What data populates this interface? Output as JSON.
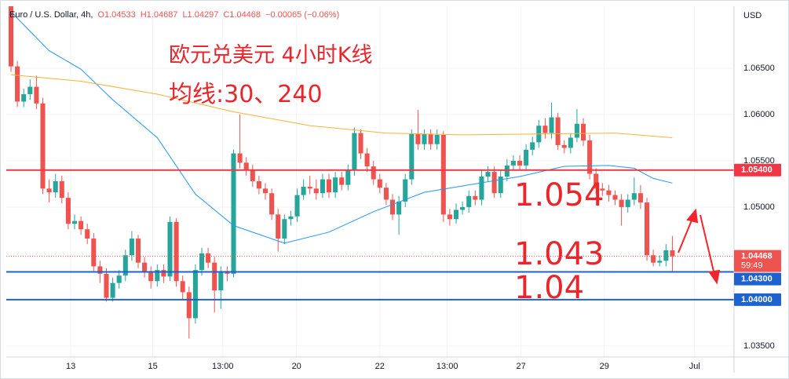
{
  "chart_data": {
    "type": "candlestick",
    "title": "Euro / U.S. Dollar, 4h,",
    "ohlc": [
      "O1.04533",
      "H1.04687",
      "L1.04297",
      "C1.04468",
      "−0.00065 (−0.06%)"
    ],
    "y_label": "USD",
    "annotations": [
      "欧元兑美元 4小时K线",
      "均线:30、240",
      "1.054",
      "1.043",
      "1.04"
    ],
    "up_color": "#26a69a",
    "down_color": "#ef5350",
    "open": [
      1.0717,
      1.0652,
      1.0614,
      1.0622,
      1.063,
      1.0612,
      1.052,
      1.0516,
      1.0528,
      1.051,
      1.0482,
      1.0485,
      1.0476,
      1.0466,
      1.0436,
      1.0428,
      1.0402,
      1.0418,
      1.0426,
      1.0448,
      1.0466,
      1.044,
      1.043,
      1.042,
      1.0432,
      1.0425,
      1.0484,
      1.042,
      1.0408,
      1.038,
      1.0432,
      1.045,
      1.044,
      1.041,
      1.043,
      1.0428,
      1.0558,
      1.0548,
      1.054,
      1.0528,
      1.052,
      1.0515,
      1.0492,
      1.0466,
      1.0487,
      1.049,
      1.0513,
      1.0522,
      1.052,
      1.0515,
      1.053,
      1.0516,
      1.0532,
      1.0524,
      1.054,
      1.058,
      1.0558,
      1.0544,
      1.053,
      1.0521,
      1.0508,
      1.0492,
      1.0506,
      1.053,
      1.0579,
      1.0568,
      1.0579,
      1.0568,
      1.0578,
      1.0492,
      1.0487,
      1.0497,
      1.05,
      1.0512,
      1.0508,
      1.0533,
      1.0538,
      1.0515,
      1.0533,
      1.0545,
      1.055,
      1.0545,
      1.0562,
      1.057,
      1.0588,
      1.058,
      1.0597,
      1.0567,
      1.0564,
      1.0575,
      1.059,
      1.0572,
      1.0536,
      1.052,
      1.0518,
      1.0513,
      1.0508,
      1.05,
      1.0508,
      1.0515,
      1.0505,
      1.0448,
      1.044,
      1.0442,
      1.04533
    ],
    "high": [
      1.072,
      1.0658,
      1.0628,
      1.0638,
      1.0642,
      1.0618,
      1.053,
      1.0536,
      1.0534,
      1.0516,
      1.0492,
      1.049,
      1.0482,
      1.0472,
      1.0442,
      1.0434,
      1.0424,
      1.0432,
      1.0454,
      1.0474,
      1.047,
      1.0446,
      1.0436,
      1.0438,
      1.0438,
      1.049,
      1.0488,
      1.0426,
      1.0414,
      1.0438,
      1.0456,
      1.0456,
      1.0446,
      1.0436,
      1.0436,
      1.0562,
      1.06,
      1.0554,
      1.0546,
      1.0534,
      1.0526,
      1.052,
      1.0498,
      1.0492,
      1.0496,
      1.052,
      1.053,
      1.0534,
      1.053,
      1.0536,
      1.0536,
      1.0538,
      1.0538,
      1.0546,
      1.0586,
      1.0584,
      1.0564,
      1.055,
      1.0536,
      1.0526,
      1.0514,
      1.0512,
      1.0536,
      1.0584,
      1.0605,
      1.0584,
      1.0584,
      1.0584,
      1.0582,
      1.0498,
      1.0504,
      1.0506,
      1.0518,
      1.0518,
      1.054,
      1.0544,
      1.0544,
      1.054,
      1.0552,
      1.0556,
      1.0556,
      1.0568,
      1.0576,
      1.0594,
      1.0596,
      1.0613,
      1.0602,
      1.0572,
      1.058,
      1.0606,
      1.0596,
      1.0578,
      1.0542,
      1.0526,
      1.0524,
      1.0518,
      1.0514,
      1.0514,
      1.0532,
      1.0524,
      1.051,
      1.0454,
      1.0448,
      1.046,
      1.04687
    ],
    "low": [
      1.0646,
      1.0608,
      1.0608,
      1.0616,
      1.0606,
      1.0514,
      1.0505,
      1.051,
      1.0504,
      1.0476,
      1.0476,
      1.047,
      1.046,
      1.043,
      1.0418,
      1.0398,
      1.0398,
      1.0412,
      1.042,
      1.0442,
      1.0434,
      1.0424,
      1.0412,
      1.0414,
      1.0418,
      1.042,
      1.0414,
      1.04,
      1.0358,
      1.0374,
      1.0426,
      1.0434,
      1.0386,
      1.039,
      1.042,
      1.0424,
      1.0542,
      1.0534,
      1.0522,
      1.0514,
      1.0508,
      1.0486,
      1.0452,
      1.046,
      1.048,
      1.0484,
      1.0508,
      1.0514,
      1.0508,
      1.051,
      1.051,
      1.051,
      1.0518,
      1.0518,
      1.0534,
      1.0552,
      1.0538,
      1.0524,
      1.0515,
      1.0502,
      1.0486,
      1.047,
      1.05,
      1.0524,
      1.0562,
      1.0562,
      1.0562,
      1.0562,
      1.0484,
      1.048,
      1.0482,
      1.0492,
      1.0494,
      1.0502,
      1.0502,
      1.0528,
      1.051,
      1.051,
      1.0528,
      1.054,
      1.054,
      1.054,
      1.0556,
      1.0564,
      1.0574,
      1.0574,
      1.0562,
      1.0558,
      1.0558,
      1.057,
      1.0566,
      1.053,
      1.0514,
      1.0512,
      1.0506,
      1.0502,
      1.048,
      1.0494,
      1.0502,
      1.0498,
      1.0442,
      1.0436,
      1.0436,
      1.0436,
      1.04297
    ],
    "close": [
      1.0652,
      1.0614,
      1.0622,
      1.063,
      1.0612,
      1.052,
      1.0516,
      1.0528,
      1.051,
      1.0482,
      1.0485,
      1.0476,
      1.0466,
      1.0436,
      1.0428,
      1.0402,
      1.0418,
      1.0426,
      1.0448,
      1.0466,
      1.044,
      1.043,
      1.042,
      1.0432,
      1.0425,
      1.0484,
      1.042,
      1.0408,
      1.038,
      1.0432,
      1.045,
      1.044,
      1.041,
      1.043,
      1.0428,
      1.0558,
      1.0548,
      1.054,
      1.0528,
      1.052,
      1.0515,
      1.0492,
      1.0466,
      1.0487,
      1.049,
      1.0513,
      1.0522,
      1.052,
      1.0515,
      1.053,
      1.0516,
      1.0532,
      1.0524,
      1.054,
      1.058,
      1.0558,
      1.0544,
      1.053,
      1.0521,
      1.0508,
      1.0492,
      1.0506,
      1.053,
      1.0579,
      1.0568,
      1.0579,
      1.0568,
      1.0578,
      1.0492,
      1.0487,
      1.0497,
      1.05,
      1.0512,
      1.0508,
      1.0533,
      1.0538,
      1.0515,
      1.0533,
      1.0545,
      1.055,
      1.0545,
      1.0562,
      1.057,
      1.0588,
      1.058,
      1.0597,
      1.0567,
      1.0564,
      1.0575,
      1.059,
      1.0572,
      1.0536,
      1.052,
      1.0518,
      1.0513,
      1.0508,
      1.05,
      1.0508,
      1.0515,
      1.0505,
      1.0448,
      1.044,
      1.0442,
      1.04533,
      1.04468
    ],
    "moving_averages": [
      {
        "color": "#2196f3",
        "x": [
          0,
          6,
          11,
          16,
          23,
          29,
          35,
          43,
          50,
          57,
          65,
          72,
          80,
          87,
          94,
          98,
          101,
          104
        ],
        "values": [
          1.0711,
          1.0669,
          1.0649,
          1.0616,
          1.0575,
          1.0514,
          1.048,
          1.0461,
          1.0473,
          1.0495,
          1.0516,
          1.0524,
          1.0533,
          1.0544,
          1.0545,
          1.0542,
          1.0531,
          1.0526
        ]
      },
      {
        "color": "#f5b335",
        "x": [
          0,
          11,
          23,
          35,
          47,
          59,
          71,
          83,
          95,
          104
        ],
        "values": [
          1.0643,
          1.0636,
          1.0622,
          1.0603,
          1.0588,
          1.058,
          1.0578,
          1.0579,
          1.058,
          1.0575
        ]
      }
    ],
    "hlines": [
      {
        "value": 1.054,
        "label": "1.05400",
        "color": "#f23645"
      },
      {
        "value": 1.043,
        "label": "1.04300",
        "color": "#1e62d0"
      },
      {
        "value": 1.04,
        "label": "1.04000",
        "color": "#1e62d0"
      }
    ],
    "last_price": {
      "value": 1.04468,
      "label": "1.04468",
      "countdown": "59:49",
      "color": "#ef5350"
    },
    "xlim": [
      -0.74,
      113.7
    ],
    "xticks": [
      {
        "value": 9.4,
        "label": "13"
      },
      {
        "value": 22.3,
        "label": "15"
      },
      {
        "value": 33.3,
        "label": "13:00"
      },
      {
        "value": 44.9,
        "label": "20"
      },
      {
        "value": 58,
        "label": "22"
      },
      {
        "value": 68.6,
        "label": "13:00"
      },
      {
        "value": 80.2,
        "label": "27"
      },
      {
        "value": 93.3,
        "label": "29"
      },
      {
        "value": 107.5,
        "label": "Jul"
      }
    ],
    "ylim": [
      1.0338,
      1.0717
    ],
    "yticks": [
      {
        "value": 1.035,
        "label": "1.03500"
      },
      {
        "value": 1.05,
        "label": "1.05000"
      },
      {
        "value": 1.055,
        "label": "1.05500"
      },
      {
        "value": 1.06,
        "label": "1.06000"
      },
      {
        "value": 1.065,
        "label": "1.06500"
      }
    ],
    "grid": true
  }
}
